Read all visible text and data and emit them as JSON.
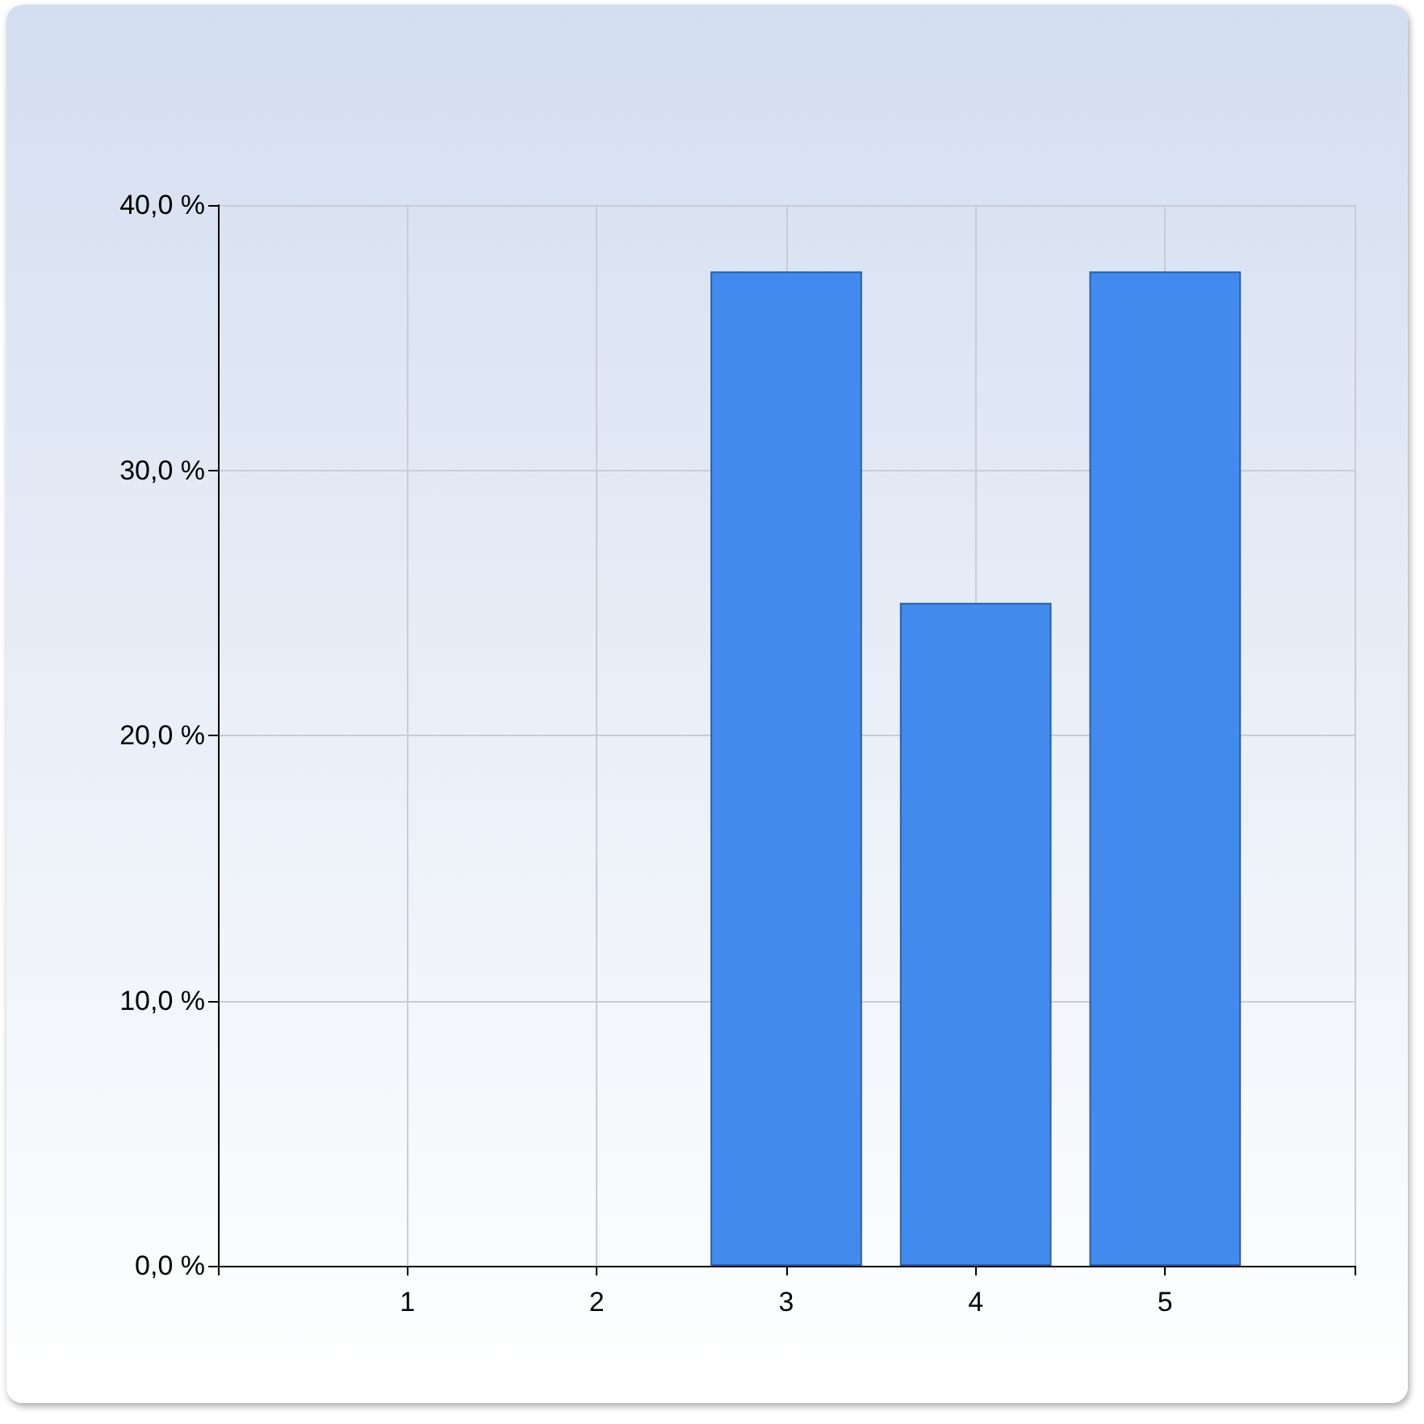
{
  "chart_data": {
    "type": "bar",
    "x": [
      1,
      2,
      3,
      4,
      5
    ],
    "values": [
      0,
      0,
      37.5,
      25,
      37.5
    ],
    "color": "#428aed",
    "xlim": [
      0,
      6
    ],
    "xticks": [
      1,
      2,
      3,
      4,
      5
    ],
    "ylim": [
      0,
      40
    ],
    "yticks": [
      {
        "value": 0,
        "label": "0,0 %"
      },
      {
        "value": 10,
        "label": "10,0 %"
      },
      {
        "value": 20,
        "label": "20,0 %"
      },
      {
        "value": 30,
        "label": "30,0 %"
      },
      {
        "value": 40,
        "label": "40,0 %"
      }
    ],
    "grid": true
  }
}
